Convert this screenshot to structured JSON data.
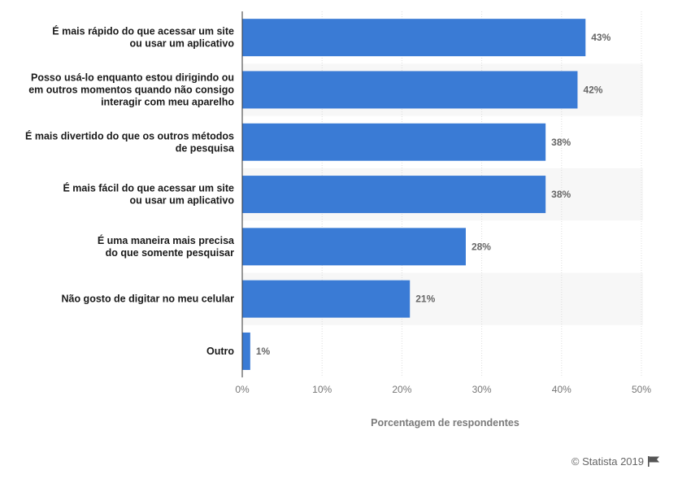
{
  "chart_data": {
    "type": "bar",
    "orientation": "horizontal",
    "categories": [
      "É mais rápido do que acessar um site\nou usar um aplicativo",
      "Posso usá-lo enquanto estou dirigindo ou\nem outros momentos quando não consigo\ninteragir com meu aparelho",
      "É mais divertido do que os outros métodos\nde pesquisa",
      "É mais fácil do que acessar um site\nou usar um aplicativo",
      "É uma maneira mais precisa\ndo que somente pesquisar",
      "Não gosto de digitar no meu celular",
      "Outro"
    ],
    "values": [
      43,
      42,
      38,
      38,
      28,
      21,
      1
    ],
    "value_labels": [
      "43%",
      "42%",
      "38%",
      "38%",
      "28%",
      "21%",
      "1%"
    ],
    "xlabel": "Porcentagem de respondentes",
    "xlim": [
      0,
      50
    ],
    "xticks": [
      "0%",
      "10%",
      "20%",
      "30%",
      "40%",
      "50%"
    ],
    "grid": true,
    "bar_color": "#3a7bd5",
    "band_color": "#f7f7f7"
  },
  "footer": {
    "credit": "© Statista 2019",
    "flag_icon": "flag-icon"
  }
}
